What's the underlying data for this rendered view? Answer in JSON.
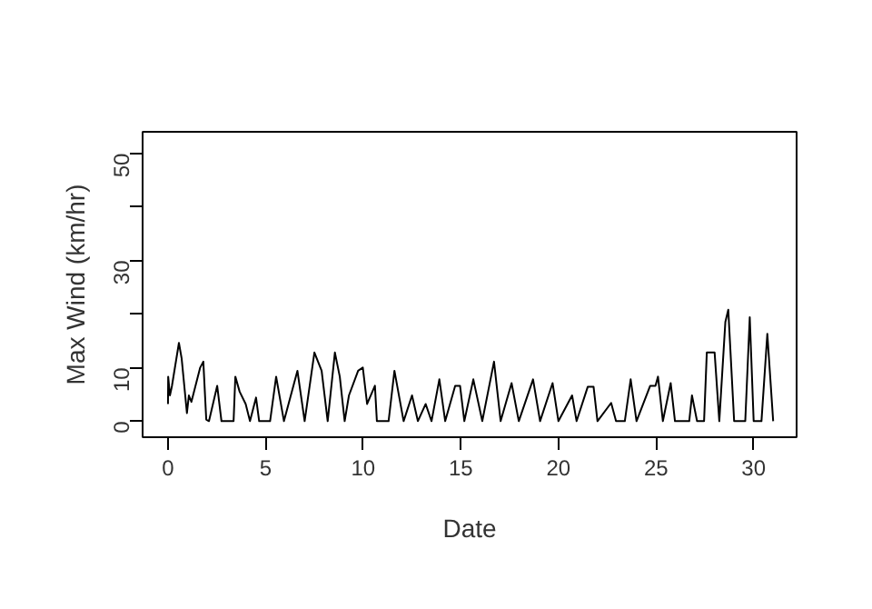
{
  "chart_data": {
    "type": "line",
    "xlabel": "Date",
    "ylabel": "Max Wind (km/hr)",
    "x": [
      0,
      0.01,
      0.1,
      0.2,
      0.56,
      0.7,
      0.97,
      1.07,
      1.2,
      1.65,
      1.81,
      1.96,
      2.1,
      2.52,
      2.74,
      3.36,
      3.45,
      3.67,
      3.98,
      4.2,
      4.51,
      4.67,
      5.23,
      5.54,
      5.94,
      6.63,
      7.0,
      7.5,
      7.87,
      8.18,
      8.55,
      8.8,
      9.05,
      9.27,
      9.74,
      9.98,
      10.2,
      10.6,
      10.7,
      11.3,
      11.6,
      12.07,
      12.5,
      12.8,
      13.2,
      13.5,
      13.9,
      14.2,
      14.71,
      14.96,
      15.18,
      15.64,
      16.1,
      16.7,
      17.04,
      17.6,
      17.97,
      18.7,
      19.06,
      19.7,
      20.0,
      20.7,
      20.93,
      21.5,
      21.8,
      22.0,
      22.7,
      22.95,
      23.4,
      23.7,
      24.0,
      24.7,
      24.97,
      25.1,
      25.35,
      25.75,
      25.97,
      26.7,
      26.84,
      27.1,
      27.46,
      27.6,
      28.0,
      28.24,
      28.55,
      28.7,
      29.0,
      29.57,
      29.8,
      30.0,
      30.4,
      30.7,
      31.0
    ],
    "values": [
      3.2,
      8.3,
      4.8,
      6.5,
      14.6,
      11.7,
      1.5,
      4.8,
      3.6,
      10,
      11.1,
      0.3,
      0,
      6.6,
      0,
      0,
      8.3,
      5.5,
      3.2,
      0,
      4.4,
      0,
      0,
      8.3,
      0,
      9.4,
      0,
      12.8,
      9.4,
      0,
      12.8,
      8.3,
      0,
      4.8,
      9.4,
      10,
      3.2,
      6.6,
      0,
      0,
      9.4,
      0,
      4.8,
      0,
      3.2,
      0,
      7.8,
      0,
      6.6,
      6.6,
      0,
      7.8,
      0,
      11.1,
      0,
      7.1,
      0,
      7.8,
      0,
      7.1,
      0,
      4.8,
      0,
      6.4,
      6.4,
      0,
      3.4,
      0,
      0,
      7.8,
      0,
      6.6,
      6.6,
      8.3,
      0,
      7.1,
      0,
      0,
      4.8,
      0,
      0,
      12.8,
      12.8,
      0,
      18.5,
      20.8,
      0,
      0,
      19.4,
      0,
      0,
      16.3,
      0
    ],
    "color": "#000000",
    "xlim": [
      -1.3,
      32.2
    ],
    "ylim": [
      -3,
      54
    ],
    "xticks": [
      0,
      5,
      10,
      15,
      20,
      25,
      30
    ],
    "yticks": [
      0,
      10,
      {
        "value": 20,
        "label": null
      },
      30,
      {
        "value": 40,
        "label": null
      },
      50
    ],
    "grid": false,
    "line_style": "solid",
    "marker": "none"
  }
}
